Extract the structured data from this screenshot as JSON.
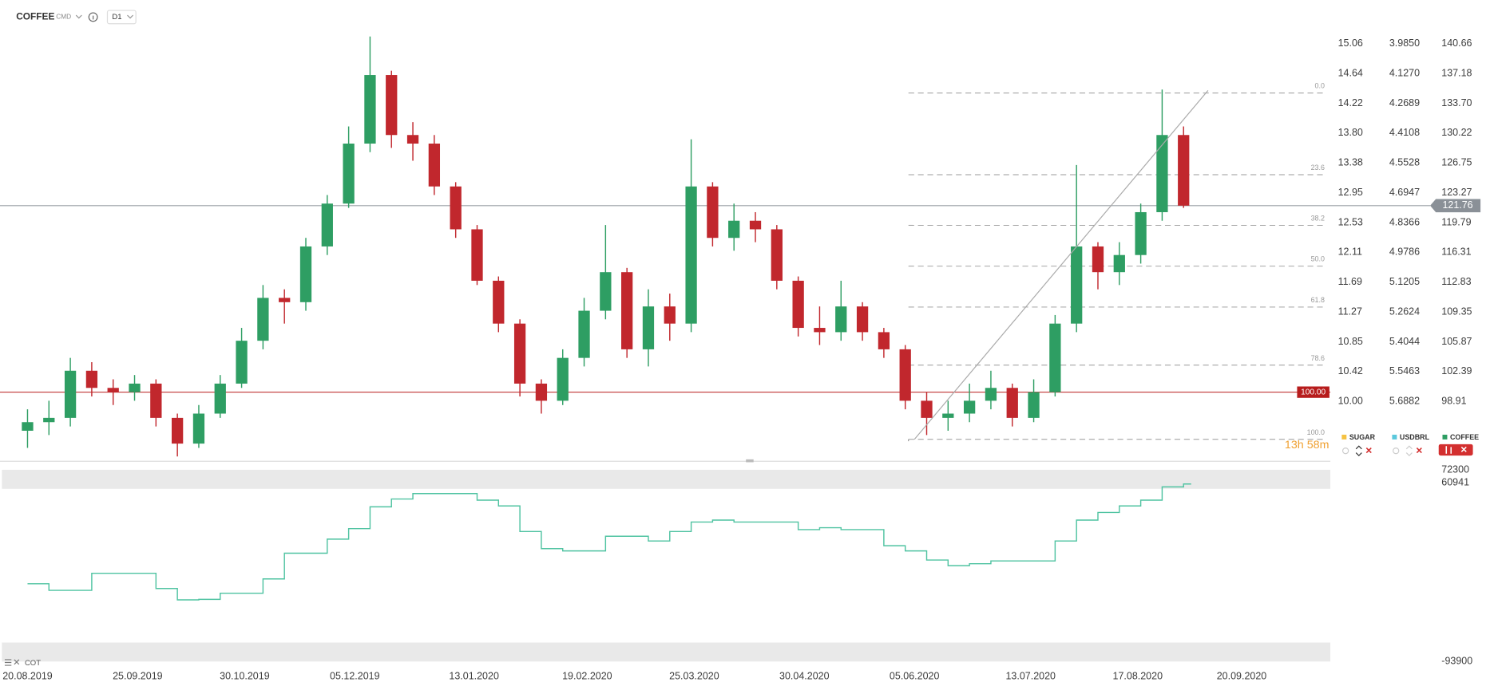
{
  "header": {
    "symbol": "COFFEE",
    "category": "CMD",
    "interval": "D1"
  },
  "countdown": "13h 58m",
  "chart_data": [
    {
      "type": "candlestick",
      "xlim": [
        "11.08.2019",
        "19.10.2020"
      ],
      "xticks": [
        "20.08.2019",
        "25.09.2019",
        "30.10.2019",
        "05.12.2019",
        "13.01.2020",
        "19.02.2020",
        "25.03.2020",
        "30.04.2020",
        "05.06.2020",
        "13.07.2020",
        "17.08.2020",
        "20.09.2020"
      ],
      "ylim": [
        92.05,
        142.43
      ],
      "yticks": [
        140.66,
        137.18,
        {
          "value": 133.7,
          "label": "133.70"
        },
        130.22,
        126.75,
        123.27,
        119.79,
        116.31,
        112.83,
        109.35,
        105.87,
        102.39,
        98.91
      ],
      "scales": [
        {
          "name": "SUGAR",
          "color": "#f5c242",
          "labels": [
            "15.06",
            "14.64",
            "14.22",
            "13.80",
            "13.38",
            "12.95",
            "12.53",
            "12.11",
            "11.69",
            "11.27",
            "10.85",
            "10.42",
            "10.00"
          ]
        },
        {
          "name": "USDBRL",
          "color": "#5bc8dc",
          "labels": [
            "3.9850",
            "4.1270",
            "4.2689",
            "4.4108",
            "4.5528",
            "4.6947",
            "4.8366",
            "4.9786",
            "5.1205",
            "5.2624",
            "5.4044",
            "5.5463",
            "5.6882"
          ]
        }
      ],
      "series_name": "COFFEE",
      "color": "#2e9e63",
      "up_color": "#2e9e63",
      "down_color": "#c1272d",
      "x": [
        "20.08.2019",
        "27.08.2019",
        "03.09.2019",
        "10.09.2019",
        "17.09.2019",
        "24.09.2019",
        "01.10.2019",
        "08.10.2019",
        "15.10.2019",
        "22.10.2019",
        "29.10.2019",
        "05.11.2019",
        "12.11.2019",
        "19.11.2019",
        "26.11.2019",
        "03.12.2019",
        "10.12.2019",
        "17.12.2019",
        "24.12.2019",
        "31.12.2019",
        "07.01.2020",
        "14.01.2020",
        "21.01.2020",
        "28.01.2020",
        "04.02.2020",
        "11.02.2020",
        "18.02.2020",
        "25.02.2020",
        "03.03.2020",
        "10.03.2020",
        "17.03.2020",
        "24.03.2020",
        "31.03.2020",
        "07.04.2020",
        "14.04.2020",
        "21.04.2020",
        "28.04.2020",
        "05.05.2020",
        "12.05.2020",
        "19.05.2020",
        "26.05.2020",
        "02.06.2020",
        "09.06.2020",
        "16.06.2020",
        "23.06.2020",
        "30.06.2020",
        "07.07.2020",
        "14.07.2020",
        "21.07.2020",
        "28.07.2020",
        "04.08.2020",
        "11.08.2020",
        "18.08.2020",
        "25.08.2020",
        "01.09.2020"
      ],
      "open": [
        95.5,
        96.5,
        97,
        102.5,
        100.5,
        100,
        101,
        97,
        94,
        97.5,
        101,
        106,
        111,
        110.5,
        117,
        122,
        129,
        137,
        130,
        129,
        124,
        119,
        113,
        108,
        101,
        99,
        104,
        109.5,
        114,
        105,
        110,
        108,
        124,
        118,
        120,
        119,
        113,
        107.5,
        107,
        110,
        107,
        105,
        99,
        97,
        97.5,
        99,
        100.5,
        97,
        100,
        108,
        117,
        114,
        116,
        121,
        130
      ],
      "high": [
        98,
        99,
        104,
        103.5,
        101.5,
        102,
        101.5,
        97.5,
        98.5,
        102,
        107.5,
        112.5,
        112,
        118,
        123,
        131,
        141.5,
        137.5,
        131.5,
        130,
        124.5,
        119.5,
        113.5,
        108.5,
        101.5,
        105,
        111,
        119.5,
        114.5,
        112,
        111.5,
        129.5,
        124.5,
        122,
        121,
        119.5,
        113.5,
        110,
        113,
        110.5,
        107.5,
        105.5,
        100,
        99,
        101,
        102.5,
        101,
        101.5,
        109,
        126.5,
        117.5,
        117.5,
        122,
        135.3,
        131
      ],
      "low": [
        93.5,
        95,
        96,
        99.5,
        98.5,
        99,
        96,
        92.5,
        93.5,
        97,
        100.5,
        105,
        108,
        109.5,
        116,
        121.5,
        128,
        128.5,
        127,
        123,
        118,
        112.5,
        107,
        99.5,
        97.5,
        98.5,
        103,
        108.5,
        104,
        103,
        106,
        107,
        117,
        116.5,
        117.5,
        112,
        106.5,
        105.5,
        106,
        106,
        104,
        98,
        95,
        95.5,
        96.5,
        98,
        96,
        96.5,
        99.5,
        107,
        112,
        112.5,
        115,
        120,
        121.5
      ],
      "close": [
        96.5,
        97,
        102.5,
        100.5,
        100,
        101,
        97,
        94,
        97.5,
        101,
        106,
        111,
        110.5,
        117,
        122,
        129,
        137,
        130,
        129,
        124,
        119,
        113,
        108,
        101,
        99,
        104,
        109.5,
        114,
        105,
        110,
        108,
        124,
        118,
        120,
        119,
        113,
        107.5,
        107,
        110,
        107,
        105,
        99,
        97,
        97.5,
        99,
        100.5,
        97,
        100,
        108,
        117,
        114,
        116,
        121,
        130,
        121.76
      ],
      "last_price": 121.76,
      "level": {
        "value": 100,
        "label": "100.00",
        "color": "#b71c1c"
      },
      "fibonacci": {
        "labels": [
          "0.0",
          "23.6",
          "38.2",
          "50.0",
          "61.8",
          "78.6",
          "100.0"
        ],
        "prices": [
          134.9,
          125.37,
          119.47,
          114.7,
          109.93,
          103.15,
          94.5
        ]
      },
      "trendline": {
        "x": [
          "05.06.2020",
          "09.09.2020"
        ],
        "values": [
          94.5,
          135.2
        ]
      },
      "legend": [
        {
          "name": "SUGAR",
          "color": "#f5c242"
        },
        {
          "name": "USDBRL",
          "color": "#5bc8dc"
        },
        {
          "name": "COFFEE",
          "color": "#2e9e63"
        }
      ]
    },
    {
      "type": "line",
      "title": "COT",
      "step": true,
      "color": "#4fc3a1",
      "ylim": [
        -93900,
        72300
      ],
      "yticks": [
        72300,
        60941,
        -93900
      ],
      "x": [
        "20.08.2019",
        "27.08.2019",
        "03.09.2019",
        "10.09.2019",
        "17.09.2019",
        "24.09.2019",
        "01.10.2019",
        "08.10.2019",
        "15.10.2019",
        "22.10.2019",
        "29.10.2019",
        "05.11.2019",
        "12.11.2019",
        "19.11.2019",
        "26.11.2019",
        "03.12.2019",
        "10.12.2019",
        "17.12.2019",
        "24.12.2019",
        "31.12.2019",
        "07.01.2020",
        "14.01.2020",
        "21.01.2020",
        "28.01.2020",
        "04.02.2020",
        "11.02.2020",
        "18.02.2020",
        "25.02.2020",
        "03.03.2020",
        "10.03.2020",
        "17.03.2020",
        "24.03.2020",
        "31.03.2020",
        "07.04.2020",
        "14.04.2020",
        "21.04.2020",
        "28.04.2020",
        "05.05.2020",
        "12.05.2020",
        "19.05.2020",
        "26.05.2020",
        "02.06.2020",
        "09.06.2020",
        "16.06.2020",
        "23.06.2020",
        "30.06.2020",
        "07.07.2020",
        "14.07.2020",
        "21.07.2020",
        "28.07.2020",
        "04.08.2020",
        "11.08.2020",
        "18.08.2020",
        "25.08.2020",
        "01.09.2020"
      ],
      "values": [
        -26500,
        -32200,
        -32200,
        -17400,
        -17400,
        -17400,
        -30600,
        -40450,
        -40000,
        -34700,
        -34700,
        -22300,
        0,
        0,
        12200,
        21300,
        40200,
        47000,
        51700,
        51700,
        51700,
        46000,
        41000,
        18800,
        4000,
        2000,
        2000,
        14700,
        14700,
        10600,
        18800,
        27000,
        28700,
        27000,
        27000,
        27000,
        20450,
        22100,
        20450,
        20450,
        6500,
        2000,
        -5900,
        -10800,
        -9100,
        -6700,
        -6700,
        -6700,
        10600,
        28700,
        35300,
        41000,
        46000,
        57500,
        60000
      ]
    }
  ]
}
